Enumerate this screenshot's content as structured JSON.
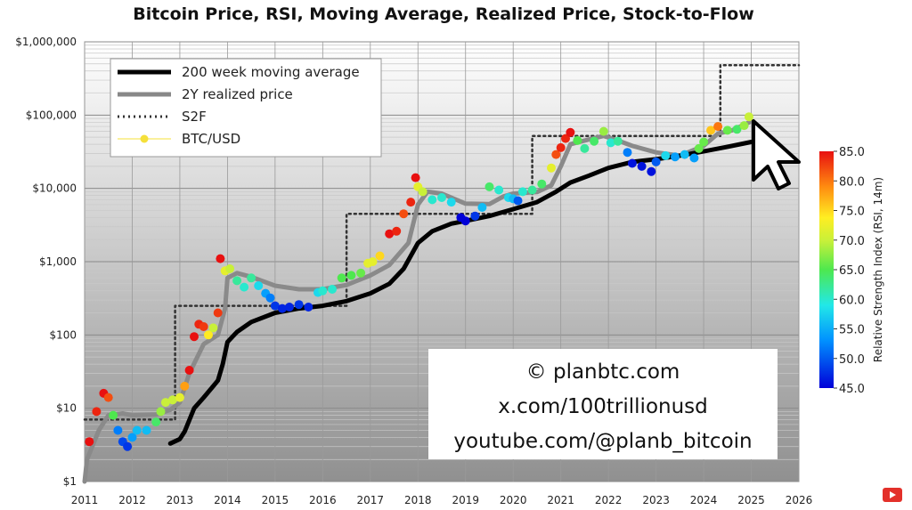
{
  "chart_data": {
    "type": "scatter",
    "title": "Bitcoin Price, RSI, Moving Average, Realized Price, Stock-to-Flow",
    "xlabel": "",
    "ylabel": "",
    "xlim": [
      2011,
      2026
    ],
    "ylim": [
      1,
      1000000
    ],
    "yscale": "log",
    "grid": true,
    "x_ticks": [
      2011,
      2012,
      2013,
      2014,
      2015,
      2016,
      2017,
      2018,
      2019,
      2020,
      2021,
      2022,
      2023,
      2024,
      2025,
      2026
    ],
    "x_tick_labels": [
      "2011",
      "2012",
      "2013",
      "2014",
      "2015",
      "2016",
      "2017",
      "2018",
      "2019",
      "2020",
      "2021",
      "2022",
      "2023",
      "2024",
      "2025",
      "2026"
    ],
    "y_ticks": [
      1,
      10,
      100,
      1000,
      10000,
      100000,
      1000000
    ],
    "y_tick_labels": [
      "$1",
      "$10",
      "$100",
      "$1,000",
      "$10,000",
      "$100,000",
      "$1,000,000"
    ],
    "legend": {
      "position": "top-left",
      "entries": [
        {
          "label": "200 week moving average",
          "color": "#000000",
          "style": "solid-thick"
        },
        {
          "label": "2Y realized price",
          "color": "#888888",
          "style": "solid-thick"
        },
        {
          "label": "S2F",
          "color": "#333333",
          "style": "dotted"
        },
        {
          "label": "BTC/USD",
          "color": "#f5e03a",
          "style": "markers"
        }
      ]
    },
    "series": [
      {
        "name": "200 week moving average",
        "type": "line",
        "color": "#000000",
        "points": [
          [
            2012.8,
            3.3
          ],
          [
            2013.0,
            3.8
          ],
          [
            2013.1,
            4.8
          ],
          [
            2013.3,
            10
          ],
          [
            2013.5,
            14
          ],
          [
            2013.7,
            20
          ],
          [
            2013.8,
            24
          ],
          [
            2013.9,
            40
          ],
          [
            2014.0,
            80
          ],
          [
            2014.2,
            110
          ],
          [
            2014.5,
            150
          ],
          [
            2015.0,
            200
          ],
          [
            2015.5,
            230
          ],
          [
            2016.0,
            250
          ],
          [
            2016.5,
            290
          ],
          [
            2017.0,
            370
          ],
          [
            2017.4,
            500
          ],
          [
            2017.7,
            800
          ],
          [
            2018.0,
            1800
          ],
          [
            2018.3,
            2600
          ],
          [
            2018.7,
            3300
          ],
          [
            2019.0,
            3600
          ],
          [
            2019.5,
            4200
          ],
          [
            2020.0,
            5200
          ],
          [
            2020.5,
            6500
          ],
          [
            2020.9,
            9000
          ],
          [
            2021.2,
            12000
          ],
          [
            2021.6,
            15000
          ],
          [
            2022.0,
            19000
          ],
          [
            2022.5,
            23000
          ],
          [
            2023.0,
            25000
          ],
          [
            2023.5,
            28000
          ],
          [
            2024.0,
            32000
          ],
          [
            2024.5,
            37000
          ],
          [
            2025.0,
            43000
          ],
          [
            2025.2,
            45000
          ]
        ]
      },
      {
        "name": "2Y realized price",
        "type": "line",
        "color": "#888888",
        "points": [
          [
            2011.0,
            1
          ],
          [
            2011.05,
            2
          ],
          [
            2011.3,
            5
          ],
          [
            2011.5,
            8
          ],
          [
            2011.8,
            8.5
          ],
          [
            2012.0,
            8
          ],
          [
            2012.5,
            8.2
          ],
          [
            2012.8,
            9.5
          ],
          [
            2013.0,
            12
          ],
          [
            2013.2,
            30
          ],
          [
            2013.5,
            75
          ],
          [
            2013.8,
            100
          ],
          [
            2013.95,
            230
          ],
          [
            2014.0,
            600
          ],
          [
            2014.2,
            700
          ],
          [
            2014.5,
            620
          ],
          [
            2015.0,
            470
          ],
          [
            2015.5,
            420
          ],
          [
            2016.0,
            420
          ],
          [
            2016.5,
            480
          ],
          [
            2017.0,
            650
          ],
          [
            2017.4,
            900
          ],
          [
            2017.8,
            1800
          ],
          [
            2018.0,
            6000
          ],
          [
            2018.2,
            9000
          ],
          [
            2018.5,
            8500
          ],
          [
            2019.0,
            6200
          ],
          [
            2019.5,
            6100
          ],
          [
            2019.8,
            7800
          ],
          [
            2020.0,
            8500
          ],
          [
            2020.5,
            8900
          ],
          [
            2020.8,
            11000
          ],
          [
            2021.0,
            20000
          ],
          [
            2021.2,
            40000
          ],
          [
            2021.5,
            45000
          ],
          [
            2021.9,
            52000
          ],
          [
            2022.2,
            45000
          ],
          [
            2022.5,
            38000
          ],
          [
            2023.0,
            31000
          ],
          [
            2023.5,
            28000
          ],
          [
            2024.0,
            38000
          ],
          [
            2024.3,
            56000
          ],
          [
            2024.6,
            62000
          ],
          [
            2025.0,
            82000
          ]
        ]
      },
      {
        "name": "S2F",
        "type": "line",
        "color": "#333333",
        "points": [
          [
            2011.0,
            7
          ],
          [
            2012.9,
            7
          ],
          [
            2012.9,
            250
          ],
          [
            2016.5,
            250
          ],
          [
            2016.5,
            4500
          ],
          [
            2020.4,
            4500
          ],
          [
            2020.4,
            52000
          ],
          [
            2024.35,
            52000
          ],
          [
            2024.35,
            480000
          ],
          [
            2026.0,
            480000
          ]
        ]
      },
      {
        "name": "BTC/USD",
        "type": "scatter",
        "colorbar": "rsi",
        "points": [
          [
            2011.1,
            3.5,
            85
          ],
          [
            2011.25,
            9,
            84
          ],
          [
            2011.4,
            16,
            85
          ],
          [
            2011.5,
            14,
            82
          ],
          [
            2011.6,
            8,
            65
          ],
          [
            2011.7,
            5,
            52
          ],
          [
            2011.8,
            3.5,
            49
          ],
          [
            2011.9,
            3,
            48
          ],
          [
            2012.0,
            4,
            54
          ],
          [
            2012.1,
            5,
            56
          ],
          [
            2012.3,
            5,
            56
          ],
          [
            2012.5,
            6.5,
            64
          ],
          [
            2012.6,
            9,
            68
          ],
          [
            2012.7,
            12,
            70
          ],
          [
            2012.85,
            13,
            70
          ],
          [
            2013.0,
            14,
            72
          ],
          [
            2013.1,
            20,
            78
          ],
          [
            2013.2,
            33,
            85
          ],
          [
            2013.3,
            95,
            85
          ],
          [
            2013.4,
            140,
            84
          ],
          [
            2013.5,
            130,
            83
          ],
          [
            2013.6,
            100,
            74
          ],
          [
            2013.7,
            125,
            70
          ],
          [
            2013.8,
            200,
            83
          ],
          [
            2013.85,
            1100,
            85
          ],
          [
            2013.95,
            750,
            72
          ],
          [
            2014.05,
            800,
            70
          ],
          [
            2014.2,
            550,
            62
          ],
          [
            2014.35,
            450,
            60
          ],
          [
            2014.5,
            600,
            62
          ],
          [
            2014.65,
            470,
            58
          ],
          [
            2014.8,
            370,
            54
          ],
          [
            2014.9,
            320,
            52
          ],
          [
            2015.0,
            250,
            48
          ],
          [
            2015.15,
            230,
            47
          ],
          [
            2015.3,
            240,
            47
          ],
          [
            2015.5,
            260,
            48
          ],
          [
            2015.7,
            240,
            47
          ],
          [
            2015.9,
            380,
            58
          ],
          [
            2016.0,
            400,
            60
          ],
          [
            2016.2,
            420,
            60
          ],
          [
            2016.4,
            600,
            65
          ],
          [
            2016.6,
            650,
            65
          ],
          [
            2016.8,
            700,
            66
          ],
          [
            2016.95,
            950,
            72
          ],
          [
            2017.05,
            1000,
            72
          ],
          [
            2017.2,
            1200,
            75
          ],
          [
            2017.4,
            2400,
            85
          ],
          [
            2017.55,
            2600,
            84
          ],
          [
            2017.7,
            4500,
            82
          ],
          [
            2017.85,
            6500,
            84
          ],
          [
            2017.95,
            14000,
            85
          ],
          [
            2018.0,
            10500,
            72
          ],
          [
            2018.1,
            9000,
            70
          ],
          [
            2018.3,
            7000,
            60
          ],
          [
            2018.5,
            7500,
            60
          ],
          [
            2018.7,
            6500,
            58
          ],
          [
            2018.9,
            4000,
            45
          ],
          [
            2019.0,
            3600,
            45
          ],
          [
            2019.2,
            4200,
            48
          ],
          [
            2019.35,
            5500,
            56
          ],
          [
            2019.5,
            10500,
            64
          ],
          [
            2019.7,
            9500,
            60
          ],
          [
            2019.9,
            7500,
            58
          ],
          [
            2020.0,
            7200,
            56
          ],
          [
            2020.1,
            6800,
            50
          ],
          [
            2020.2,
            9000,
            60
          ],
          [
            2020.4,
            9500,
            62
          ],
          [
            2020.6,
            11500,
            64
          ],
          [
            2020.8,
            19000,
            72
          ],
          [
            2020.9,
            29000,
            82
          ],
          [
            2021.0,
            36000,
            84
          ],
          [
            2021.1,
            48000,
            84
          ],
          [
            2021.2,
            58000,
            85
          ],
          [
            2021.35,
            45000,
            65
          ],
          [
            2021.5,
            35000,
            62
          ],
          [
            2021.7,
            44000,
            64
          ],
          [
            2021.9,
            60000,
            68
          ],
          [
            2022.05,
            42000,
            60
          ],
          [
            2022.2,
            44000,
            62
          ],
          [
            2022.4,
            31000,
            52
          ],
          [
            2022.5,
            22000,
            46
          ],
          [
            2022.7,
            20000,
            46
          ],
          [
            2022.9,
            17000,
            46
          ],
          [
            2023.0,
            23000,
            50
          ],
          [
            2023.2,
            28000,
            58
          ],
          [
            2023.4,
            27000,
            54
          ],
          [
            2023.6,
            29000,
            56
          ],
          [
            2023.8,
            26000,
            54
          ],
          [
            2023.9,
            35000,
            66
          ],
          [
            2024.0,
            43000,
            66
          ],
          [
            2024.15,
            62000,
            76
          ],
          [
            2024.3,
            70000,
            80
          ],
          [
            2024.5,
            62000,
            66
          ],
          [
            2024.7,
            64000,
            64
          ],
          [
            2024.85,
            72000,
            68
          ],
          [
            2024.95,
            95000,
            70
          ]
        ]
      }
    ],
    "colorbar": {
      "label": "Relative Strength Index (RSI, 14m)",
      "min": 45.0,
      "max": 85.0,
      "ticks": [
        45.0,
        50.0,
        55.0,
        60.0,
        65.0,
        70.0,
        75.0,
        80.0,
        85.0
      ],
      "tick_labels": [
        "45.0",
        "50.0",
        "55.0",
        "60.0",
        "65.0",
        "70.0",
        "75.0",
        "80.0",
        "85.0"
      ],
      "colormap": "jet"
    },
    "annotations": {
      "credit_lines": [
        "© planbtc.com",
        "x.com/100trillionusd",
        "youtube.com/@planb_bitcoin"
      ],
      "cursor": "arrow-cursor-icon"
    }
  }
}
